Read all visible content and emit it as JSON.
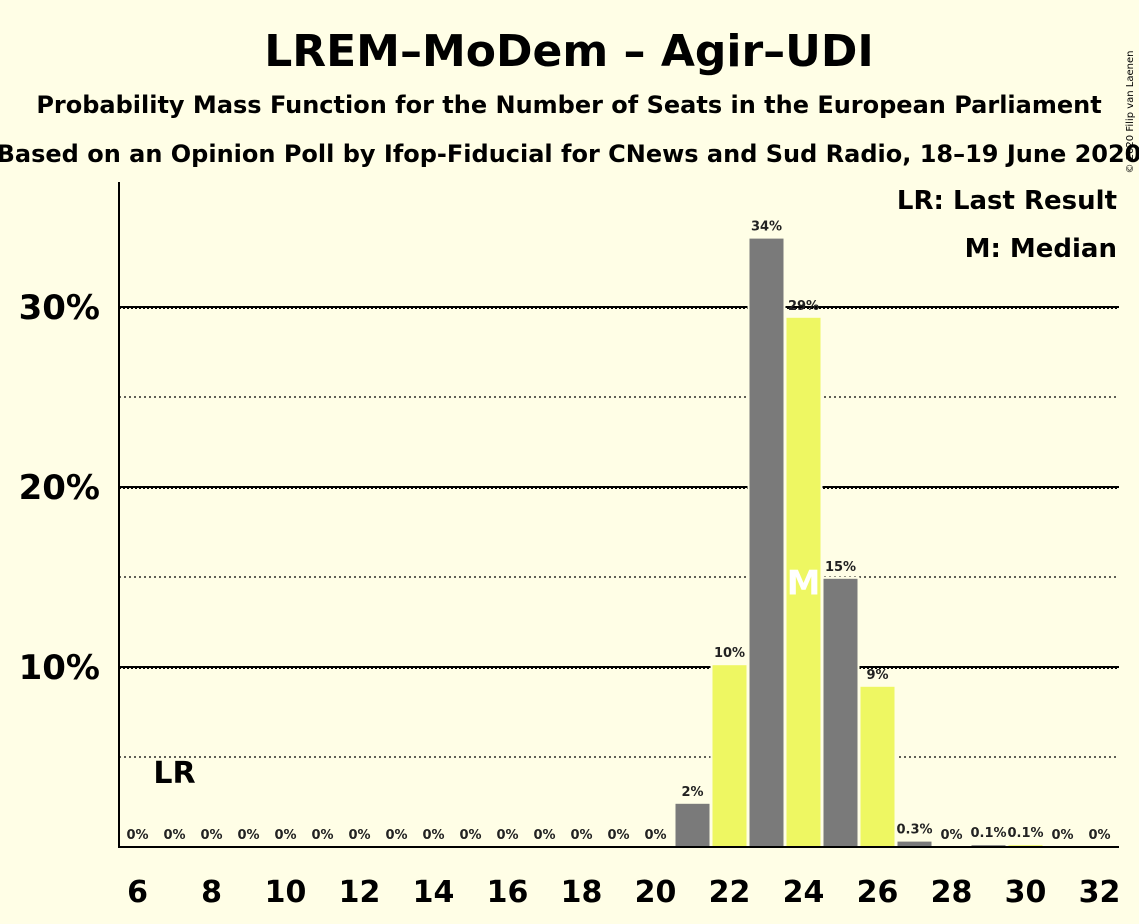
{
  "chart_data": {
    "type": "bar",
    "title": "LREM–MoDem – Agir–UDI",
    "subtitle": "Probability Mass Function for the Number of Seats in the European Parliament",
    "subtitle2": "Based on an Opinion Poll by Ifop-Fiducial for CNews and Sud Radio, 18–19 June 2020",
    "copyright": "© 2020 Filip van Laenen",
    "x": [
      6,
      7,
      8,
      9,
      10,
      11,
      12,
      13,
      14,
      15,
      16,
      17,
      18,
      19,
      20,
      21,
      22,
      23,
      24,
      25,
      26,
      27,
      28,
      29,
      30,
      31,
      32
    ],
    "values": [
      0,
      0,
      0,
      0,
      0,
      0,
      0,
      0,
      0,
      0,
      0,
      0,
      0,
      0,
      0,
      2.4,
      10.1,
      33.8,
      29.4,
      14.9,
      8.9,
      0.3,
      0,
      0.1,
      0.1,
      0,
      0
    ],
    "value_labels": [
      "0%",
      "0%",
      "0%",
      "0%",
      "0%",
      "0%",
      "0%",
      "0%",
      "0%",
      "0%",
      "0%",
      "0%",
      "0%",
      "0%",
      "0%",
      "2%",
      "10%",
      "34%",
      "29%",
      "15%",
      "9%",
      "0.3%",
      "0%",
      "0.1%",
      "0.1%",
      "0%",
      "0%"
    ],
    "x_tick_labels": [
      "6",
      "8",
      "10",
      "12",
      "14",
      "16",
      "18",
      "20",
      "22",
      "24",
      "26",
      "28",
      "30",
      "32"
    ],
    "y_tick_labels": [
      "10%",
      "20%",
      "30%"
    ],
    "ylim": [
      0,
      37
    ],
    "xlim": [
      5.5,
      32.5
    ],
    "grid_major": [
      10,
      20,
      30
    ],
    "grid_minor": [
      5,
      15,
      25
    ],
    "last_result_seat": 7,
    "median_seat": 24,
    "last_result_marker": "LR",
    "median_marker": "M",
    "legend": [
      "LR: Last Result",
      "M: Median"
    ],
    "legend_position": "top-right",
    "colors": {
      "background": "#FFFEE6",
      "bar_gray": "#7A7A7A",
      "bar_yellow": "#EEF762",
      "axis": "#000000"
    }
  }
}
